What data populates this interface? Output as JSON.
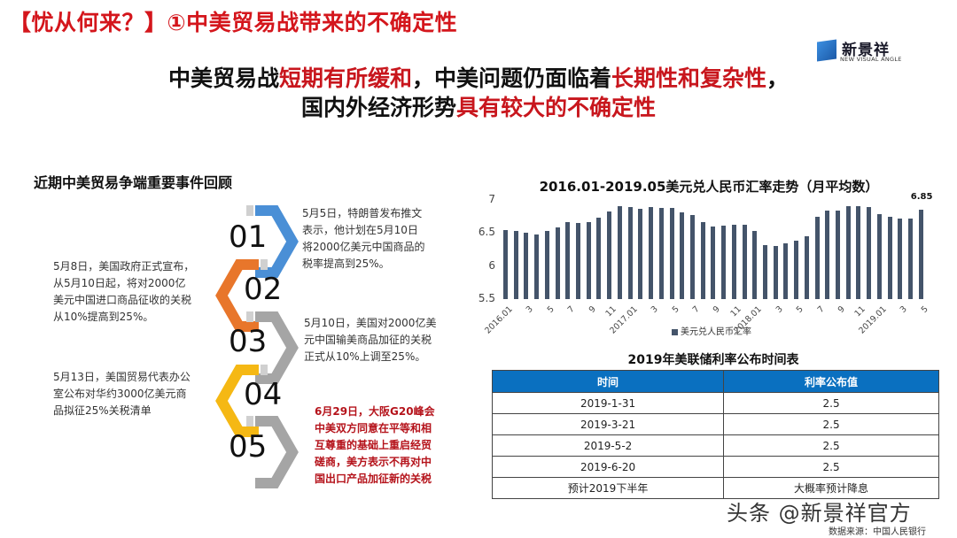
{
  "slide": {
    "title": "【忧从何来？】①中美贸易战带来的不确定性",
    "logo": {
      "cn": "新景祥",
      "en": "NEW VISUAL ANGLE",
      "icon": "cube-logo-icon"
    },
    "headline": {
      "line1": [
        {
          "text": "中美贸易战",
          "red": false
        },
        {
          "text": "短期有所缓和",
          "red": true
        },
        {
          "text": "，中美问题仍面临着",
          "red": false
        },
        {
          "text": "长期性和复杂性",
          "red": true
        },
        {
          "text": "，",
          "red": false
        }
      ],
      "line2": [
        {
          "text": "国内外经济形势",
          "red": false
        },
        {
          "text": "具有较大的不确定性",
          "red": true
        }
      ]
    },
    "colors": {
      "title_red": "#d4161c",
      "bar": "#44546a",
      "table_header": "#0a70c0"
    }
  },
  "timeline": {
    "title": "近期中美贸易争端重要事件回顾",
    "events": [
      {
        "num": "01",
        "color": "#4a8fd6",
        "lines": [
          "5月5日，特朗普发布推文",
          "表示，他计划在5月10日",
          "将2000亿美元中国商品的",
          "税率提高到25%。"
        ],
        "highlight": false
      },
      {
        "num": "02",
        "color": "#e8762b",
        "lines": [
          "5月8日，美国政府正式宣布，",
          "从5月10日起，将对2000亿",
          "美元中国进口商品征收的关税",
          "从10%提高到25%。"
        ],
        "highlight": false
      },
      {
        "num": "03",
        "color": "#a5a5a5",
        "lines": [
          "5月10日，美国对2000亿美",
          "元中国输美商品加征的关税",
          "正式从10%上调至25%。"
        ],
        "highlight": false
      },
      {
        "num": "04",
        "color": "#f5b814",
        "lines": [
          "5月13日，美国贸易代表办公",
          "室公布对华约3000亿美元商",
          "品拟征25%关税清单"
        ],
        "highlight": false
      },
      {
        "num": "05",
        "color": "#a5a5a5",
        "lines": [
          "6月29日，大阪G20峰会",
          "中美双方同意在平等和相",
          "互尊重的基础上重启经贸",
          "磋商，美方表示不再对中",
          "国出口产品加征新的关税"
        ],
        "highlight": true
      }
    ]
  },
  "chart_data": {
    "type": "bar",
    "title": "2016.01-2019.05美元兑人民币汇率走势（月平均数）",
    "xlabel": "",
    "ylabel": "",
    "ylim": [
      5.5,
      7
    ],
    "yticks": [
      "7",
      "6.5",
      "6",
      "5.5"
    ],
    "grid": false,
    "legend_position": "bottom",
    "x_tick_labels": [
      "2016.01",
      "3",
      "5",
      "7",
      "9",
      "11",
      "2017.01",
      "3",
      "5",
      "7",
      "9",
      "11",
      "2018.01",
      "3",
      "5",
      "7",
      "9",
      "11",
      "2019.01",
      "3",
      "5"
    ],
    "categories": [
      "2016.01",
      "2016.02",
      "2016.03",
      "2016.04",
      "2016.05",
      "2016.06",
      "2016.07",
      "2016.08",
      "2016.09",
      "2016.10",
      "2016.11",
      "2016.12",
      "2017.01",
      "2017.02",
      "2017.03",
      "2017.04",
      "2017.05",
      "2017.06",
      "2017.07",
      "2017.08",
      "2017.09",
      "2017.10",
      "2017.11",
      "2017.12",
      "2018.01",
      "2018.02",
      "2018.03",
      "2018.04",
      "2018.05",
      "2018.06",
      "2018.07",
      "2018.08",
      "2018.09",
      "2018.10",
      "2018.11",
      "2018.12",
      "2019.01",
      "2019.02",
      "2019.03",
      "2019.04",
      "2019.05"
    ],
    "series": [
      {
        "name": "美元兑人民币汇率",
        "values": [
          6.55,
          6.53,
          6.51,
          6.48,
          6.53,
          6.59,
          6.67,
          6.65,
          6.67,
          6.73,
          6.83,
          6.91,
          6.89,
          6.87,
          6.89,
          6.88,
          6.88,
          6.81,
          6.77,
          6.67,
          6.6,
          6.61,
          6.63,
          6.62,
          6.53,
          6.32,
          6.31,
          6.35,
          6.38,
          6.45,
          6.74,
          6.84,
          6.84,
          6.9,
          6.91,
          6.89,
          6.79,
          6.74,
          6.72,
          6.72,
          6.85
        ]
      }
    ],
    "annotations": [
      {
        "x": "2019.05",
        "text": "6.85"
      }
    ]
  },
  "fed_table": {
    "title": "2019年美联储利率公布时间表",
    "headers": [
      "时间",
      "利率公布值"
    ],
    "rows": [
      [
        "2019-1-31",
        "2.5"
      ],
      [
        "2019-3-21",
        "2.5"
      ],
      [
        "2019-5-2",
        "2.5"
      ],
      [
        "2019-6-20",
        "2.5"
      ],
      [
        "预计2019下半年",
        "大概率预计降息"
      ]
    ]
  },
  "footer": {
    "watermark": "头条 @新景祥官方",
    "source": "数据来源：中国人民银行"
  }
}
